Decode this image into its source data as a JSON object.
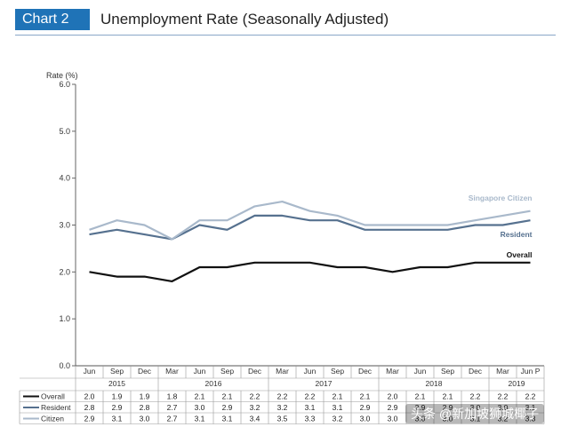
{
  "header": {
    "tag": "Chart 2",
    "title": "Unemployment Rate (Seasonally Adjusted)"
  },
  "watermark": "头条 @新加坡狮城椰子",
  "colors": {
    "overall": "#111111",
    "resident": "#56718f",
    "citizen": "#a9b9cb",
    "accent": "#1f73b7"
  },
  "chart_data": {
    "type": "line",
    "ylabel": "Rate (%)",
    "ylim": [
      0,
      6
    ],
    "yticks": [
      "0.0",
      "1.0",
      "2.0",
      "3.0",
      "4.0",
      "5.0",
      "6.0"
    ],
    "categories": [
      "Jun",
      "Sep",
      "Dec",
      "Mar",
      "Jun",
      "Sep",
      "Dec",
      "Mar",
      "Jun",
      "Sep",
      "Dec",
      "Mar",
      "Jun",
      "Sep",
      "Dec",
      "Mar",
      "Jun P"
    ],
    "years": [
      {
        "label": "2015",
        "start": 0,
        "end": 2
      },
      {
        "label": "2016",
        "start": 3,
        "end": 6
      },
      {
        "label": "2017",
        "start": 7,
        "end": 10
      },
      {
        "label": "2018",
        "start": 11,
        "end": 14
      },
      {
        "label": "2019",
        "start": 15,
        "end": 16
      }
    ],
    "series": [
      {
        "name": "Overall",
        "end_label": "Overall",
        "key": "overall",
        "values": [
          2.0,
          1.9,
          1.9,
          1.8,
          2.1,
          2.1,
          2.2,
          2.2,
          2.2,
          2.1,
          2.1,
          2.0,
          2.1,
          2.1,
          2.2,
          2.2,
          2.2
        ]
      },
      {
        "name": "Resident",
        "end_label": "Resident",
        "key": "resident",
        "values": [
          2.8,
          2.9,
          2.8,
          2.7,
          3.0,
          2.9,
          3.2,
          3.2,
          3.1,
          3.1,
          2.9,
          2.9,
          2.9,
          2.9,
          3.0,
          3.0,
          3.1
        ]
      },
      {
        "name": "Citizen",
        "end_label": "Singapore Citizen",
        "key": "citizen",
        "values": [
          2.9,
          3.1,
          3.0,
          2.7,
          3.1,
          3.1,
          3.4,
          3.5,
          3.3,
          3.2,
          3.0,
          3.0,
          3.0,
          3.0,
          3.1,
          3.2,
          3.3
        ]
      }
    ],
    "grid": false,
    "legend": "table-below"
  }
}
